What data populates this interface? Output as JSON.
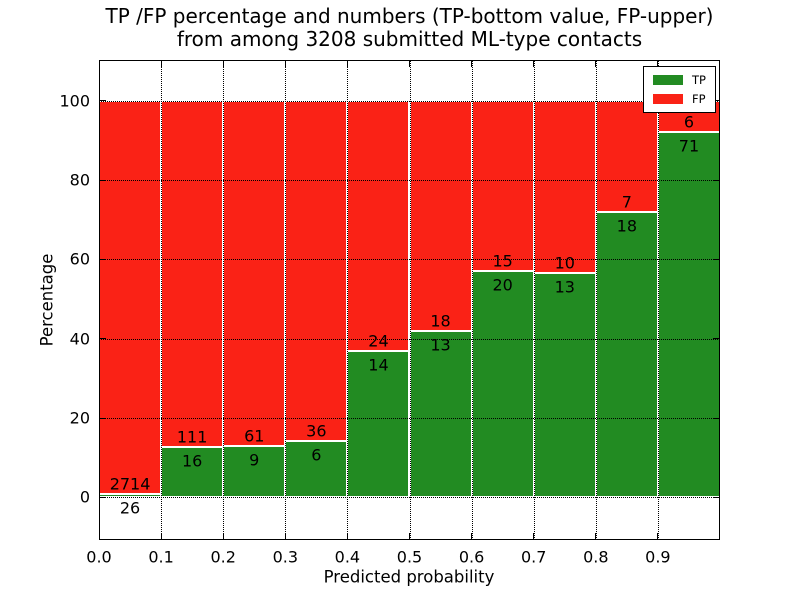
{
  "figure": {
    "title_line1": "TP /FP percentage and numbers (TP-bottom value, FP-upper)",
    "title_line2": "from among 3208 submitted ML-type contacts"
  },
  "chart_data": {
    "type": "bar",
    "stacked": true,
    "normalized_to_percent": true,
    "title": "TP /FP percentage and numbers (TP-bottom value, FP-upper)\nfrom among 3208 submitted ML-type contacts",
    "xlabel": "Predicted probability",
    "ylabel": "Percentage",
    "total_submitted": 3208,
    "bin_edges": [
      0.0,
      0.1,
      0.2,
      0.3,
      0.4,
      0.5,
      0.6,
      0.7,
      0.8,
      0.9,
      1.0
    ],
    "x_ticks": [
      "0.0",
      "0.1",
      "0.2",
      "0.3",
      "0.4",
      "0.5",
      "0.6",
      "0.7",
      "0.8",
      "0.9"
    ],
    "y_ticks": [
      "0",
      "20",
      "40",
      "60",
      "80",
      "100"
    ],
    "xlim": [
      0,
      1
    ],
    "ylim": [
      -10.75,
      110.25
    ],
    "grid": true,
    "grid_style": "dotted",
    "legend_position": "upper right",
    "series": [
      {
        "name": "TP",
        "color": "#228b22",
        "counts": [
          26,
          16,
          9,
          6,
          14,
          13,
          20,
          13,
          18,
          71
        ]
      },
      {
        "name": "FP",
        "color": "#fa2216",
        "counts": [
          2714,
          111,
          61,
          36,
          24,
          18,
          15,
          10,
          7,
          6
        ]
      }
    ],
    "tp_percent_per_bin": [
      0.95,
      12.6,
      12.86,
      14.29,
      36.84,
      41.94,
      57.14,
      56.52,
      72.0,
      92.21
    ]
  }
}
